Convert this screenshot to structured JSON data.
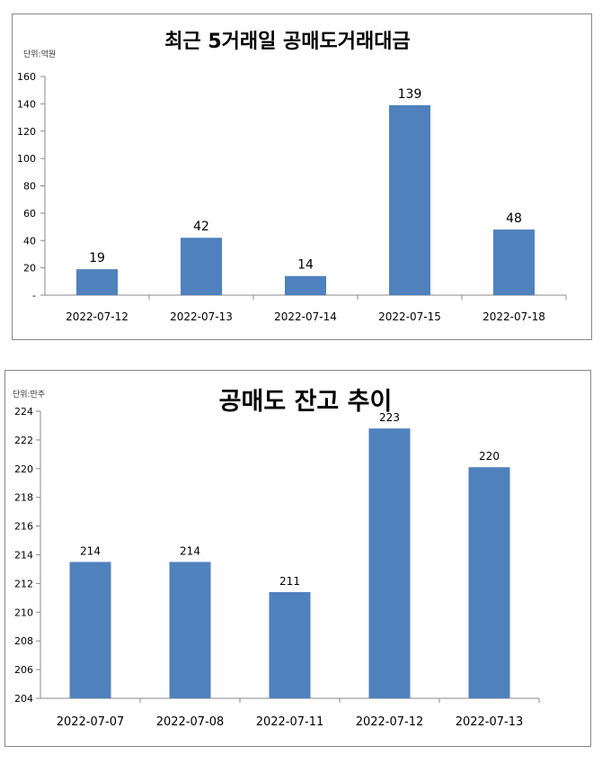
{
  "chart_data": [
    {
      "type": "bar",
      "title": "최근 5거래일 공매도거래대금",
      "unit_label": "단위:억원",
      "categories": [
        "2022-07-12",
        "2022-07-13",
        "2022-07-14",
        "2022-07-15",
        "2022-07-18"
      ],
      "values": [
        19,
        42,
        14,
        139,
        48
      ],
      "data_labels": [
        "19",
        "42",
        "14",
        "139",
        "48"
      ],
      "ylim": [
        0,
        160
      ],
      "yticks": [
        "-",
        "20",
        "40",
        "60",
        "80",
        "100",
        "120",
        "140",
        "160"
      ],
      "bar_color": "#4F81BD",
      "grid": false
    },
    {
      "type": "bar",
      "title": "공매도 잔고 추이",
      "unit_label": "단위:만주",
      "categories": [
        "2022-07-07",
        "2022-07-08",
        "2022-07-11",
        "2022-07-12",
        "2022-07-13"
      ],
      "values": [
        213.5,
        213.5,
        211.4,
        222.8,
        220.1
      ],
      "data_labels": [
        "214",
        "214",
        "211",
        "223",
        "220"
      ],
      "ylim": [
        204,
        224
      ],
      "yticks": [
        "204",
        "206",
        "208",
        "210",
        "212",
        "214",
        "216",
        "218",
        "220",
        "222",
        "224"
      ],
      "bar_color": "#4F81BD",
      "grid": false
    }
  ]
}
